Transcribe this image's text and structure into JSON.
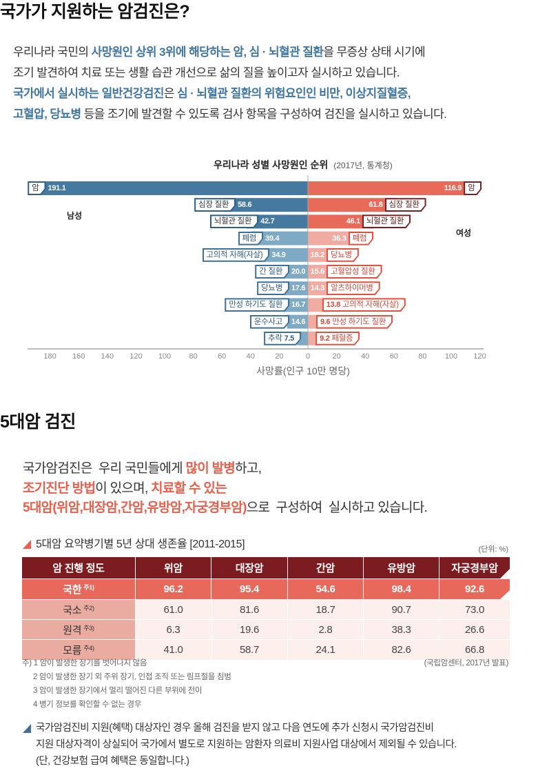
{
  "colors": {
    "text_blue": "#3f76a3",
    "text_red": "#e8604c",
    "male_dark": "#46799f",
    "male_light": "#7faac6",
    "female_dark": "#e86a58",
    "female_light": "#f0aca3",
    "table_header": "#7d1c20",
    "table_highlight": "#e8695b",
    "table_stage": "#eaaba1",
    "table_cell": "#fcefec",
    "bullet_red": "#e8614f",
    "bullet_blue": "#3f6f99"
  },
  "section1": {
    "title": "국가가 지원하는 암검진은?",
    "lines": [
      [
        "우리나라 국민의 ",
        "사망원인 상위 3위에 해당하는 암, 심 · 뇌혈관 질환",
        "을 무증상 상태 시기에"
      ],
      [
        "조기 발견하여 치료 또는 생활 습관 개선으로 삶의 질을 높이고자 실시하고 있습니다."
      ],
      [
        "국가에서 실시하는 일반건강검진",
        "은 ",
        "심 · 뇌혈관 질환의 위험요인인 비만, 이상지질혈증,"
      ],
      [
        "고혈압, 당뇨병",
        " 등을 조기에 발견할 수 있도록 검사 항목을 구성하여 검진을 실시하고 있습니다."
      ]
    ]
  },
  "chart_data": {
    "type": "bar",
    "orientation": "horizontal-diverging",
    "title": "우리나라 성별 사망원인 순위",
    "subtitle": "(2017년, 통계청)",
    "xlabel": "사망률(인구 10만 명당)",
    "ylabel": "",
    "grid": false,
    "xlim": {
      "male": [
        0,
        190
      ],
      "female": [
        0,
        125
      ]
    },
    "x_ticks": {
      "male": [
        180,
        160,
        140,
        120,
        100,
        80,
        60,
        40,
        20
      ],
      "zero": 0,
      "female": [
        20,
        40,
        60,
        80,
        100,
        120
      ]
    },
    "series": [
      {
        "name": "남성",
        "categories": [
          "암",
          "심장 질환",
          "뇌혈관 질환",
          "폐렴",
          "고의적 자해(자살)",
          "간 질환",
          "당뇨병",
          "만성 하기도 질환",
          "운수사고",
          "추락"
        ],
        "values": [
          191.1,
          58.6,
          42.7,
          39.4,
          34.9,
          20.0,
          17.6,
          16.7,
          14.6,
          7.5
        ]
      },
      {
        "name": "여성",
        "categories": [
          "암",
          "심장 질환",
          "뇌혈관 질환",
          "폐렴",
          "당뇨병",
          "고혈압성 질환",
          "알츠하이머병",
          "고의적 자해(자살)",
          "만성 하기도 질환",
          "패혈증"
        ],
        "values": [
          116.9,
          61.8,
          46.1,
          36.3,
          18.2,
          15.6,
          14.3,
          13.8,
          9.6,
          9.2
        ]
      }
    ]
  },
  "section2": {
    "title": "5대암 검진",
    "lines": [
      [
        "국가암검진은  우리 국민들에게 ",
        "많이 발병",
        "하고,"
      ],
      [
        "조기진단 방법",
        "이 있으며, ",
        "치료할 수 있는"
      ],
      [
        "5대암(위암,대장암,간암,유방암,자궁경부암)",
        "으로  구성하여  실시하고 있습니다."
      ]
    ]
  },
  "table": {
    "title": "5대암 요약병기별 5년 상대 생존율 [2011-2015]",
    "unit": "(단위: %)",
    "headers": [
      "암 진행 정도",
      "위암",
      "대장암",
      "간암",
      "유방암",
      "자궁경부암"
    ],
    "rows": [
      {
        "stage": "국한",
        "note": "주1)",
        "values": [
          "96.2",
          "95.4",
          "54.6",
          "98.4",
          "92.6"
        ]
      },
      {
        "stage": "국소",
        "note": "주2)",
        "values": [
          "61.0",
          "81.6",
          "18.7",
          "90.7",
          "73.0"
        ]
      },
      {
        "stage": "원격",
        "note": "주3)",
        "values": [
          "6.3",
          "19.6",
          "2.8",
          "38.3",
          "26.6"
        ]
      },
      {
        "stage": "모름",
        "note": "주4)",
        "values": [
          "41.0",
          "58.7",
          "24.1",
          "82.6",
          "66.8"
        ]
      }
    ],
    "footnotes": [
      "주) 1 암이 발생한 장기를 벗어나지 않음",
      "2 암이 발생한 장기 외 주위 장기, 인접 조직 또는 림프절을 침범",
      "3 암이 발생한 장기에서 멀리 떨어진 다른 부위에 전이",
      "4 병기 정보를 확인할 수 없는 경우"
    ],
    "source": "(국립암센터, 2017년 발표)"
  },
  "notice": {
    "lines": [
      "국가암검진비 지원(혜택) 대상자인 경우 올해 검진을 받지 않고 다음 연도에 추가 신청시 국가암검진비",
      "지원 대상자격이 상실되어 국가에서 별도로 지원하는 암환자 의료비 지원사업 대상에서 제외될 수 있습니다.",
      "(단, 건강보험 급여 혜택은 동일합니다.)"
    ]
  }
}
